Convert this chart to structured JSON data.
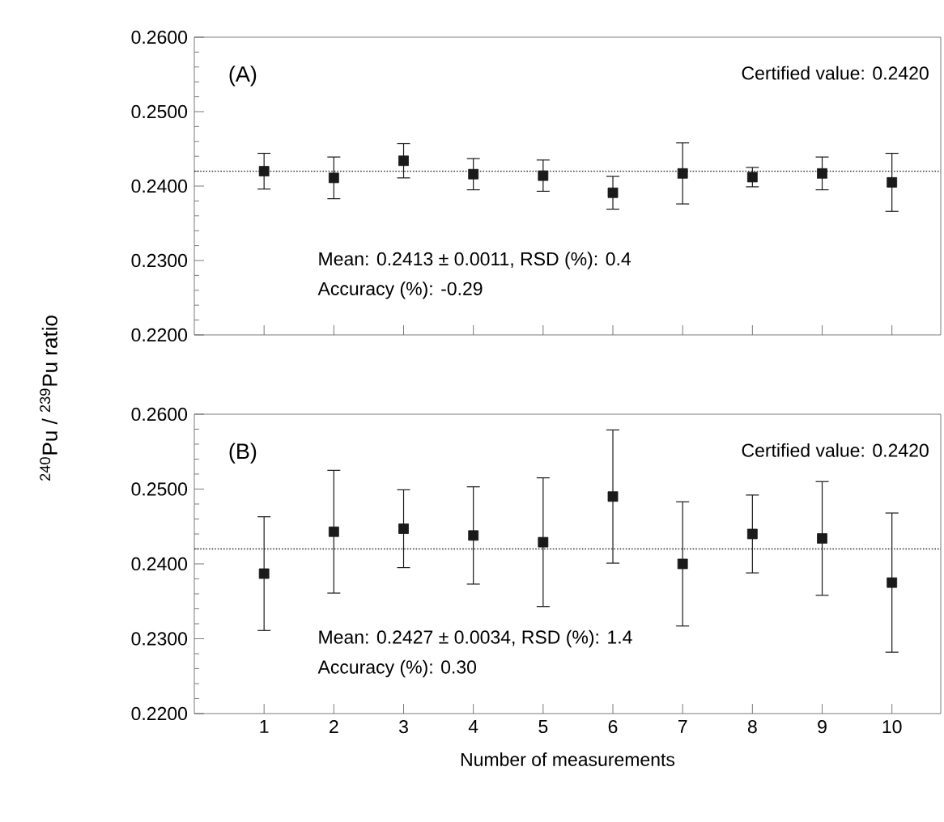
{
  "chart_data": [
    {
      "type": "scatter",
      "x": [
        1,
        2,
        3,
        4,
        5,
        6,
        7,
        8,
        9,
        10
      ],
      "color": "#1a1a1a",
      "marker": "square",
      "values": [
        0.242,
        0.2411,
        0.2434,
        0.2416,
        0.2414,
        0.2391,
        0.2417,
        0.2412,
        0.2417,
        0.2405
      ],
      "errors": [
        0.0024,
        0.0028,
        0.0023,
        0.0021,
        0.0021,
        0.0022,
        0.0041,
        0.0013,
        0.0022,
        0.0039
      ],
      "xlim": [
        0,
        10.7
      ],
      "xticks": [
        1,
        2,
        3,
        4,
        5,
        6,
        7,
        8,
        9,
        10
      ],
      "ylim": [
        0.22,
        0.26
      ],
      "yticks": [
        {
          "value": 0.22,
          "label": "0.2200"
        },
        {
          "value": 0.23,
          "label": "0.2300"
        },
        {
          "value": 0.24,
          "label": "0.2400"
        },
        {
          "value": 0.25,
          "label": "0.2500"
        },
        {
          "value": 0.26,
          "label": "0.2600"
        }
      ],
      "tick_labels": "y",
      "ref_lines": [
        {
          "axis": "y",
          "value": 0.242,
          "line_style": "dotted"
        }
      ],
      "annotations": [
        "(A)",
        "Mean: 0.2413 ± 0.0011, RSD (%): 0.4",
        "Accuracy (%): -0.29",
        "Certified value: 0.2420"
      ]
    },
    {
      "type": "scatter",
      "x": [
        1,
        2,
        3,
        4,
        5,
        6,
        7,
        8,
        9,
        10
      ],
      "color": "#1a1a1a",
      "marker": "square",
      "values": [
        0.2387,
        0.2443,
        0.2447,
        0.2438,
        0.2429,
        0.249,
        0.24,
        0.244,
        0.2434,
        0.2375
      ],
      "errors": [
        0.0076,
        0.0082,
        0.0052,
        0.0065,
        0.0086,
        0.0089,
        0.0083,
        0.0052,
        0.0076,
        0.0093
      ],
      "xlim": [
        0,
        10.7
      ],
      "xticks": [
        1,
        2,
        3,
        4,
        5,
        6,
        7,
        8,
        9,
        10
      ],
      "ylim": [
        0.22,
        0.26
      ],
      "yticks": [
        {
          "value": 0.22,
          "label": "0.2200"
        },
        {
          "value": 0.23,
          "label": "0.2300"
        },
        {
          "value": 0.24,
          "label": "0.2400"
        },
        {
          "value": 0.25,
          "label": "0.2500"
        },
        {
          "value": 0.26,
          "label": "0.2600"
        }
      ],
      "xlabel": "Number of measurements",
      "ylabel": "$^{240}$Pu / $^{239}$Pu ratio",
      "ref_lines": [
        {
          "axis": "y",
          "value": 0.242,
          "line_style": "dotted"
        }
      ],
      "annotations": [
        "(B)",
        "Mean: 0.2427 ± 0.0034, RSD (%): 1.4",
        "Accuracy (%): 0.30",
        "Certified value: 0.2420"
      ]
    }
  ]
}
